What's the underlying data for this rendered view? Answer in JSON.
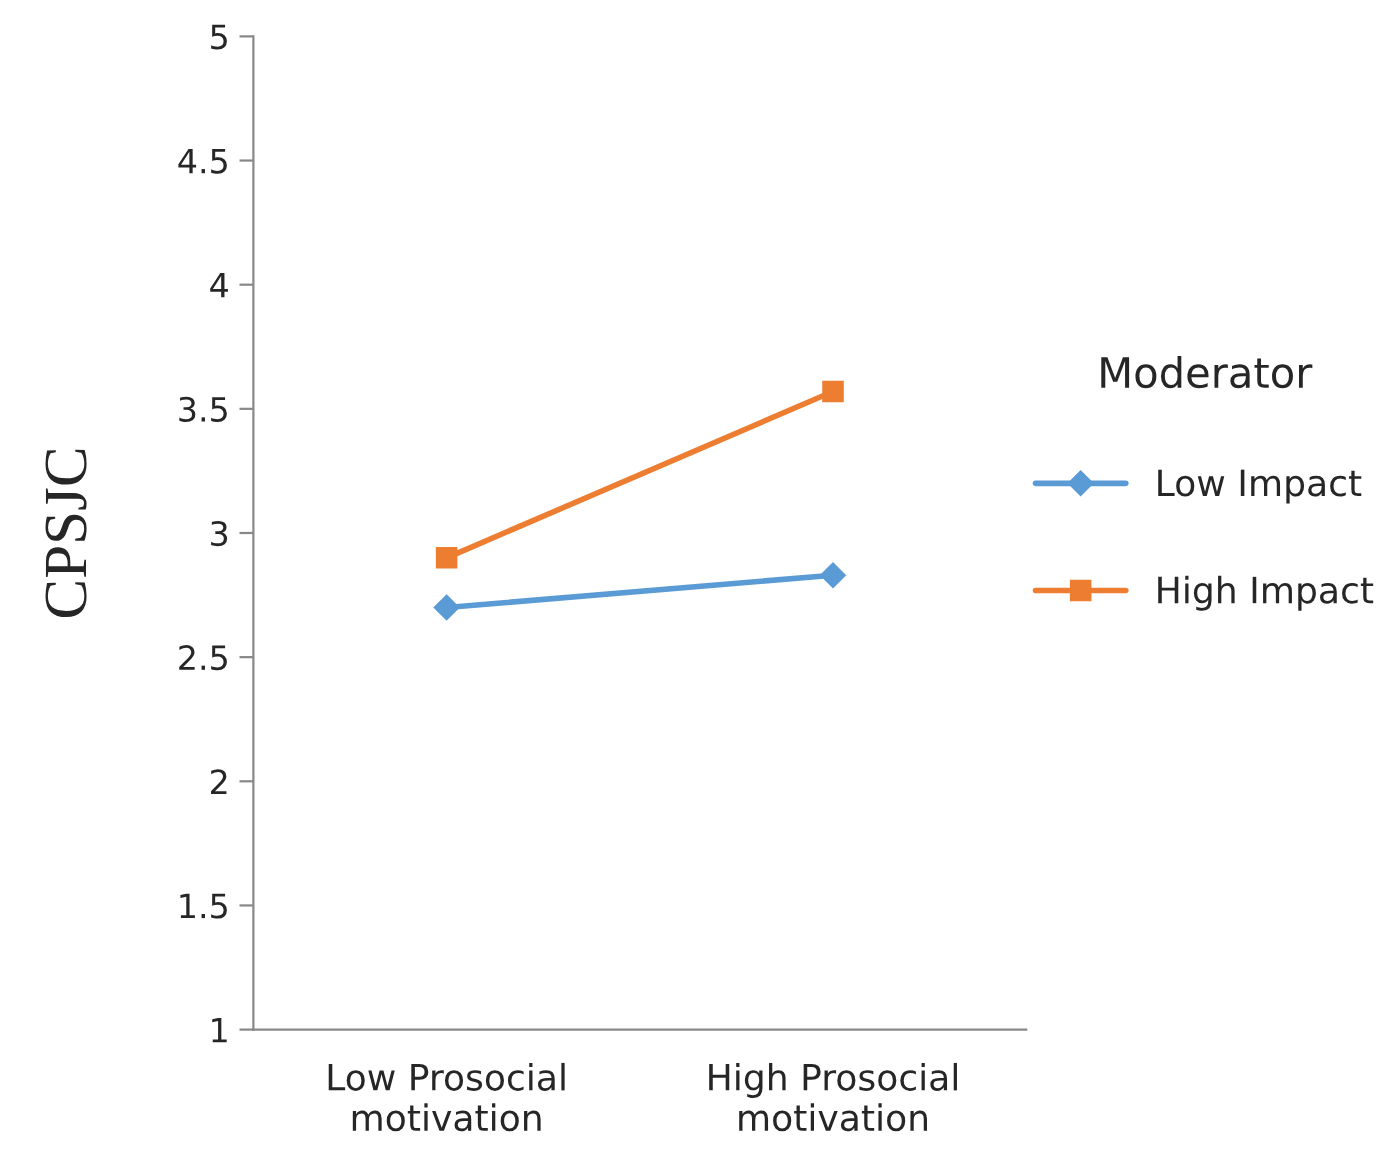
{
  "chart_data": {
    "type": "line",
    "ylabel": "CPSJC",
    "legend_title": "Moderator",
    "categories": [
      "Low Prosocial\nmotivation",
      "High Prosocial\nmotivation"
    ],
    "series": [
      {
        "name": "Low Impact",
        "color": "#5b9bd5",
        "marker": "diamond",
        "values": [
          2.7,
          2.83
        ]
      },
      {
        "name": "High Impact",
        "color": "#ed7d31",
        "marker": "square",
        "values": [
          2.9,
          3.57
        ]
      }
    ],
    "ylim": [
      1,
      5
    ],
    "yticks": [
      1,
      1.5,
      2,
      2.5,
      3,
      3.5,
      4,
      4.5,
      5
    ],
    "grid": false,
    "legend": "right"
  }
}
